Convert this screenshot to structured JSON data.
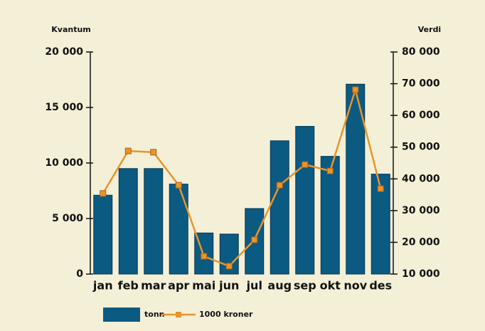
{
  "chart_data": {
    "type": "bar_line",
    "y_label": "Kvantum",
    "y2_label": "Verdi",
    "categories": [
      "jan",
      "feb",
      "mar",
      "apr",
      "mai",
      "jun",
      "jul",
      "aug",
      "sep",
      "okt",
      "nov",
      "des"
    ],
    "series": [
      {
        "name": "tonn",
        "color": "#0b5a82",
        "type": "bar",
        "values": [
          7100,
          9500,
          9500,
          8100,
          3700,
          3600,
          5900,
          12000,
          13300,
          10600,
          17100,
          9000
        ]
      },
      {
        "name": "1000 kroner",
        "color": "#e8952a",
        "type": "line",
        "axis": "y2",
        "values": [
          35400,
          48800,
          48400,
          38000,
          15600,
          12500,
          20800,
          38000,
          44500,
          42500,
          68100,
          36900
        ]
      }
    ],
    "ylim": [
      0,
      20000
    ],
    "yticks": [
      0,
      {
        "value": 5000,
        "label": "5 000"
      },
      {
        "value": 10000,
        "label": "10 000"
      },
      {
        "value": 15000,
        "label": "15 000"
      },
      {
        "value": 20000,
        "label": "20 000"
      }
    ],
    "y2lim": [
      10000,
      80000
    ],
    "y2ticks": [
      {
        "value": 10000,
        "label": "10 000"
      },
      {
        "value": 20000,
        "label": "20 000"
      },
      {
        "value": 30000,
        "label": "30 000"
      },
      {
        "value": 40000,
        "label": "40 000"
      },
      {
        "value": 50000,
        "label": "50 000"
      },
      {
        "value": 60000,
        "label": "60 000"
      },
      {
        "value": 70000,
        "label": "70 000"
      },
      {
        "value": 80000,
        "label": "80 000"
      }
    ]
  }
}
